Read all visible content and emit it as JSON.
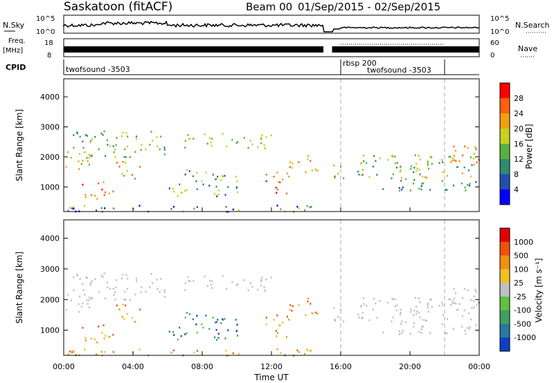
{
  "header": {
    "station": "Saskatoon (fitACF)",
    "beam": "Beam 00",
    "date_range": "01/Sep/2015 - 02/Sep/2015"
  },
  "top_panels": {
    "nsky_label": "N.Sky",
    "nsearch_label": "N.Search",
    "noise_ticks_left": [
      "10^5",
      "10^0"
    ],
    "noise_ticks_right": [
      "10^5",
      "10^0"
    ],
    "freq_label": "Freq.",
    "freq_unit": "[MHz]",
    "freq_ticks": [
      "18",
      "8"
    ],
    "nave_label": "Nave",
    "nave_ticks": [
      "60",
      "0"
    ],
    "cpid_label": "CPID",
    "cpid_segments": [
      {
        "name": "twofsound -3503",
        "start_hour": 0,
        "end_hour": 16
      },
      {
        "name": "rbsp 200",
        "start_hour": 16,
        "end_hour": 16
      },
      {
        "name": "twofsound -3503",
        "start_hour": 16,
        "end_hour": 22
      }
    ]
  },
  "chart_data": [
    {
      "type": "heatmap",
      "title": "",
      "xlabel": "Time UT",
      "ylabel": "Slant Range [km]",
      "x_ticks": [
        "00:00",
        "04:00",
        "08:00",
        "12:00",
        "16:00",
        "20:00",
        "00:00"
      ],
      "xlim_hours": [
        0,
        24
      ],
      "y_ticks": [
        1000,
        2000,
        3000,
        4000
      ],
      "ylim": [
        180,
        4600
      ],
      "colorbar_label": "Power [dB]",
      "colorbar_ticks": [
        "28",
        "24",
        "20",
        "16",
        "12",
        "8",
        "4"
      ],
      "colorbar_range": [
        0,
        30
      ],
      "colorbar_colors": [
        "#0000ff",
        "#1f4fb0",
        "#2e8a70",
        "#58b040",
        "#c8d020",
        "#f0a010",
        "#ff6010",
        "#ff0000"
      ],
      "data_gap_hours": [
        15.0,
        15.5
      ],
      "cpid_change_hours": [
        16.0,
        22.0
      ]
    },
    {
      "type": "heatmap",
      "title": "",
      "xlabel": "Time UT",
      "ylabel": "Slant Range [km]",
      "x_ticks": [
        "00:00",
        "04:00",
        "08:00",
        "12:00",
        "16:00",
        "20:00",
        "00:00"
      ],
      "xlim_hours": [
        0,
        24
      ],
      "y_ticks": [
        1000,
        2000,
        3000,
        4000
      ],
      "ylim": [
        180,
        4600
      ],
      "colorbar_label": "Velocity [m s⁻¹]",
      "colorbar_ticks": [
        "1000",
        "500",
        "100",
        "25",
        "-25",
        "-100",
        "-500",
        "-1000"
      ],
      "colorbar_colors": [
        "#1040c0",
        "#2878a0",
        "#40a060",
        "#60c040",
        "#c0c0c0",
        "#f0c020",
        "#f09010",
        "#f05010",
        "#e00000"
      ],
      "ground_scatter_color": "#c0c0c0",
      "data_gap_hours": [
        15.0,
        15.5
      ],
      "cpid_change_hours": [
        16.0,
        22.0
      ]
    }
  ]
}
